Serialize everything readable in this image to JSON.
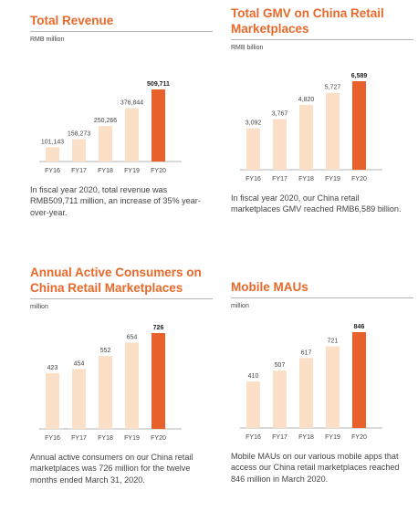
{
  "colors": {
    "bar": "#fbe0c7",
    "highlight": "#e8602a",
    "title": "#e8692a"
  },
  "chart_data": [
    {
      "type": "bar",
      "title": "Total Revenue",
      "ylabel": "RMB million",
      "categories": [
        "FY16",
        "FY17",
        "FY18",
        "FY19",
        "FY20"
      ],
      "values": [
        101143,
        158273,
        250266,
        376844,
        509711
      ],
      "value_labels": [
        "101,143",
        "158,273",
        "250,266",
        "376,844",
        "509,711"
      ],
      "ylim": [
        0,
        509711
      ],
      "highlight_index": 4,
      "description": "In fiscal year 2020, total revenue was RMB509,711 million, an increase of 35% year-over-year."
    },
    {
      "type": "bar",
      "title": "Total GMV on China Retail Marketplaces",
      "ylabel": "RMB billion",
      "categories": [
        "FY16",
        "FY17",
        "FY18",
        "FY19",
        "FY20"
      ],
      "values": [
        3092,
        3767,
        4820,
        5727,
        6589
      ],
      "value_labels": [
        "3,092",
        "3,767",
        "4,820",
        "5,727",
        "6,589"
      ],
      "ylim": [
        0,
        6589
      ],
      "highlight_index": 4,
      "description": "In fiscal year 2020, our China retail marketplaces GMV reached RMB6,589 billion."
    },
    {
      "type": "bar",
      "title": "Annual Active Consumers on China Retail Marketplaces",
      "ylabel": "million",
      "categories": [
        "FY16",
        "FY17",
        "FY18",
        "FY19",
        "FY20"
      ],
      "values": [
        423,
        454,
        552,
        654,
        726
      ],
      "value_labels": [
        "423",
        "454",
        "552",
        "654",
        "726"
      ],
      "ylim": [
        0,
        726
      ],
      "highlight_index": 4,
      "description": "Annual active consumers on our China retail marketplaces was 726 million for the twelve months ended March 31, 2020."
    },
    {
      "type": "bar",
      "title": "Mobile MAUs",
      "ylabel": "million",
      "categories": [
        "FY16",
        "FY17",
        "FY18",
        "FY19",
        "FY20"
      ],
      "values": [
        410,
        507,
        617,
        721,
        846
      ],
      "value_labels": [
        "410",
        "507",
        "617",
        "721",
        "846"
      ],
      "ylim": [
        0,
        846
      ],
      "highlight_index": 4,
      "description": "Mobile MAUs on our various mobile apps that access our China retail marketplaces reached 846 million in March 2020."
    }
  ]
}
